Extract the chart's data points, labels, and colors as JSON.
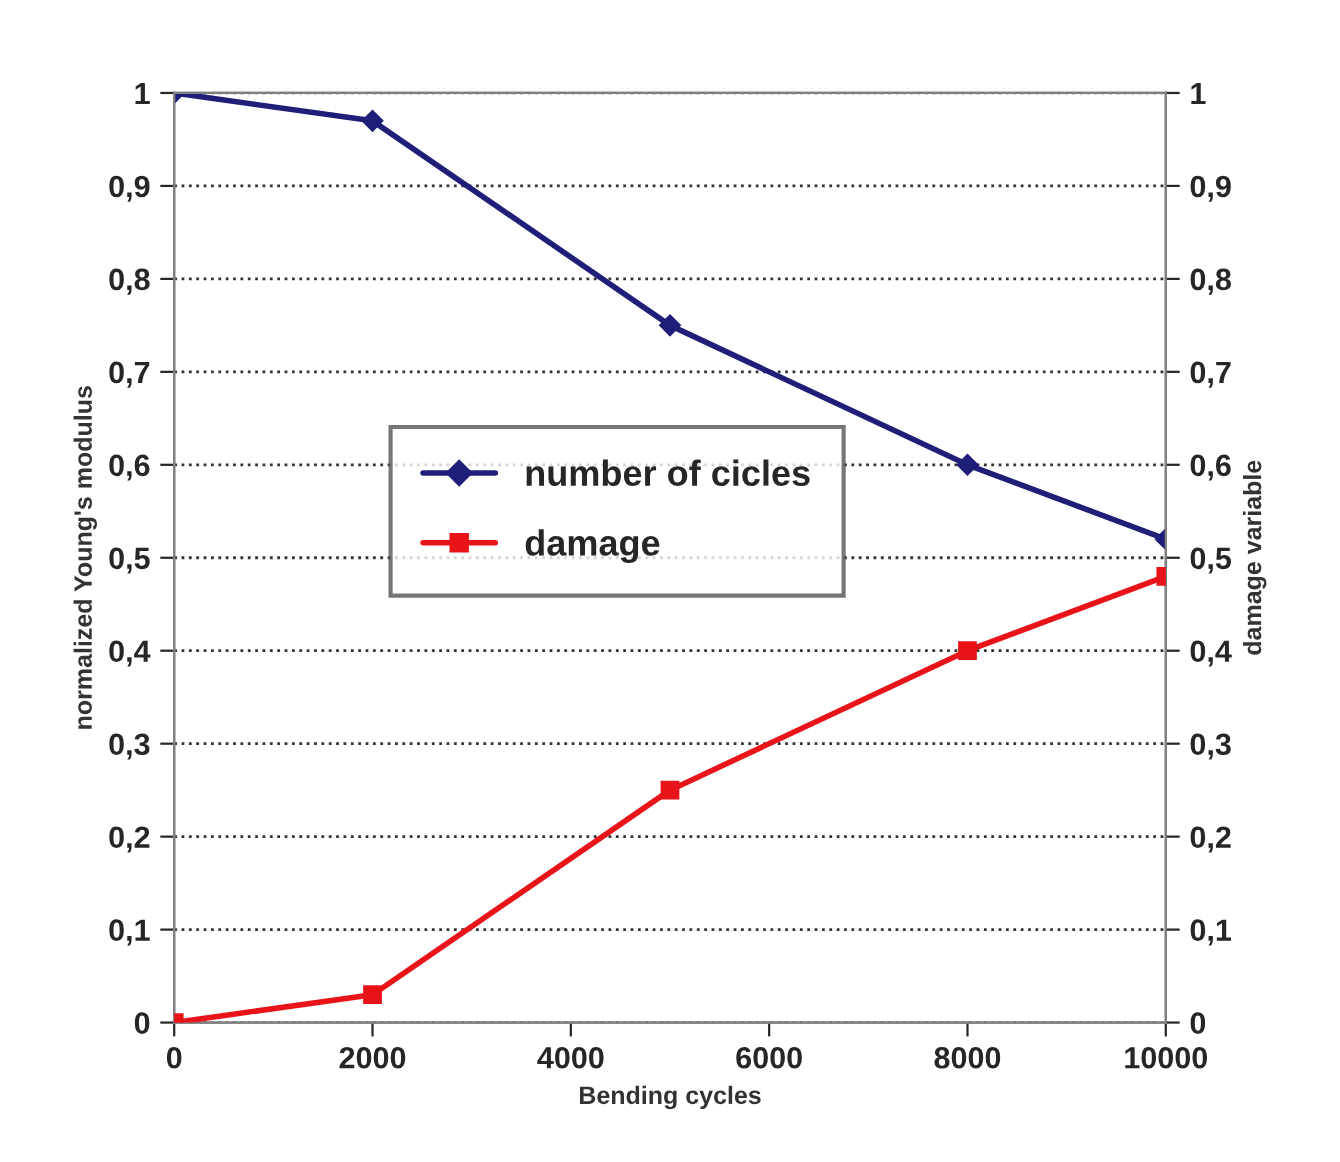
{
  "chart_data": {
    "type": "line",
    "xlabel": "Bending cycles",
    "ylabel": "normalized Young's modulus",
    "y2label": "damage variable",
    "x": [
      0,
      2000,
      5000,
      8000,
      10000
    ],
    "series": [
      {
        "name": "number of cicles",
        "color": "#1f1f7a",
        "marker": "diamond",
        "values": [
          1,
          0.97,
          0.75,
          0.6,
          0.52
        ]
      },
      {
        "name": "damage",
        "color": "#e8141a",
        "marker": "square",
        "axis": "y2",
        "values": [
          0,
          0.03,
          0.25,
          0.4,
          0.48
        ]
      }
    ],
    "xlim": [
      0,
      10000
    ],
    "xticks": [
      0,
      2000,
      4000,
      6000,
      8000,
      10000
    ],
    "ylim": [
      0,
      1
    ],
    "yticks": [
      0,
      {
        "value": 0.1,
        "label": "0,1"
      },
      {
        "value": 0.2,
        "label": "0,2"
      },
      {
        "value": 0.3,
        "label": "0,3"
      },
      {
        "value": 0.4,
        "label": "0,4"
      },
      {
        "value": 0.5,
        "label": "0,5"
      },
      {
        "value": 0.6,
        "label": "0,6"
      },
      {
        "value": 0.7,
        "label": "0,7"
      },
      {
        "value": 0.8,
        "label": "0,8"
      },
      {
        "value": 0.9,
        "label": "0,9"
      },
      1
    ],
    "y2lim": [
      0,
      1
    ],
    "y2ticks": [
      0,
      {
        "value": 0.1,
        "label": "0,1"
      },
      {
        "value": 0.2,
        "label": "0,2"
      },
      {
        "value": 0.3,
        "label": "0,3"
      },
      {
        "value": 0.4,
        "label": "0,4"
      },
      {
        "value": 0.5,
        "label": "0,5"
      },
      {
        "value": 0.6,
        "label": "0,6"
      },
      {
        "value": 0.7,
        "label": "0,7"
      },
      {
        "value": 0.8,
        "label": "0,8"
      },
      {
        "value": 0.9,
        "label": "0,9"
      },
      1
    ],
    "grid": "y",
    "legend": "left"
  }
}
